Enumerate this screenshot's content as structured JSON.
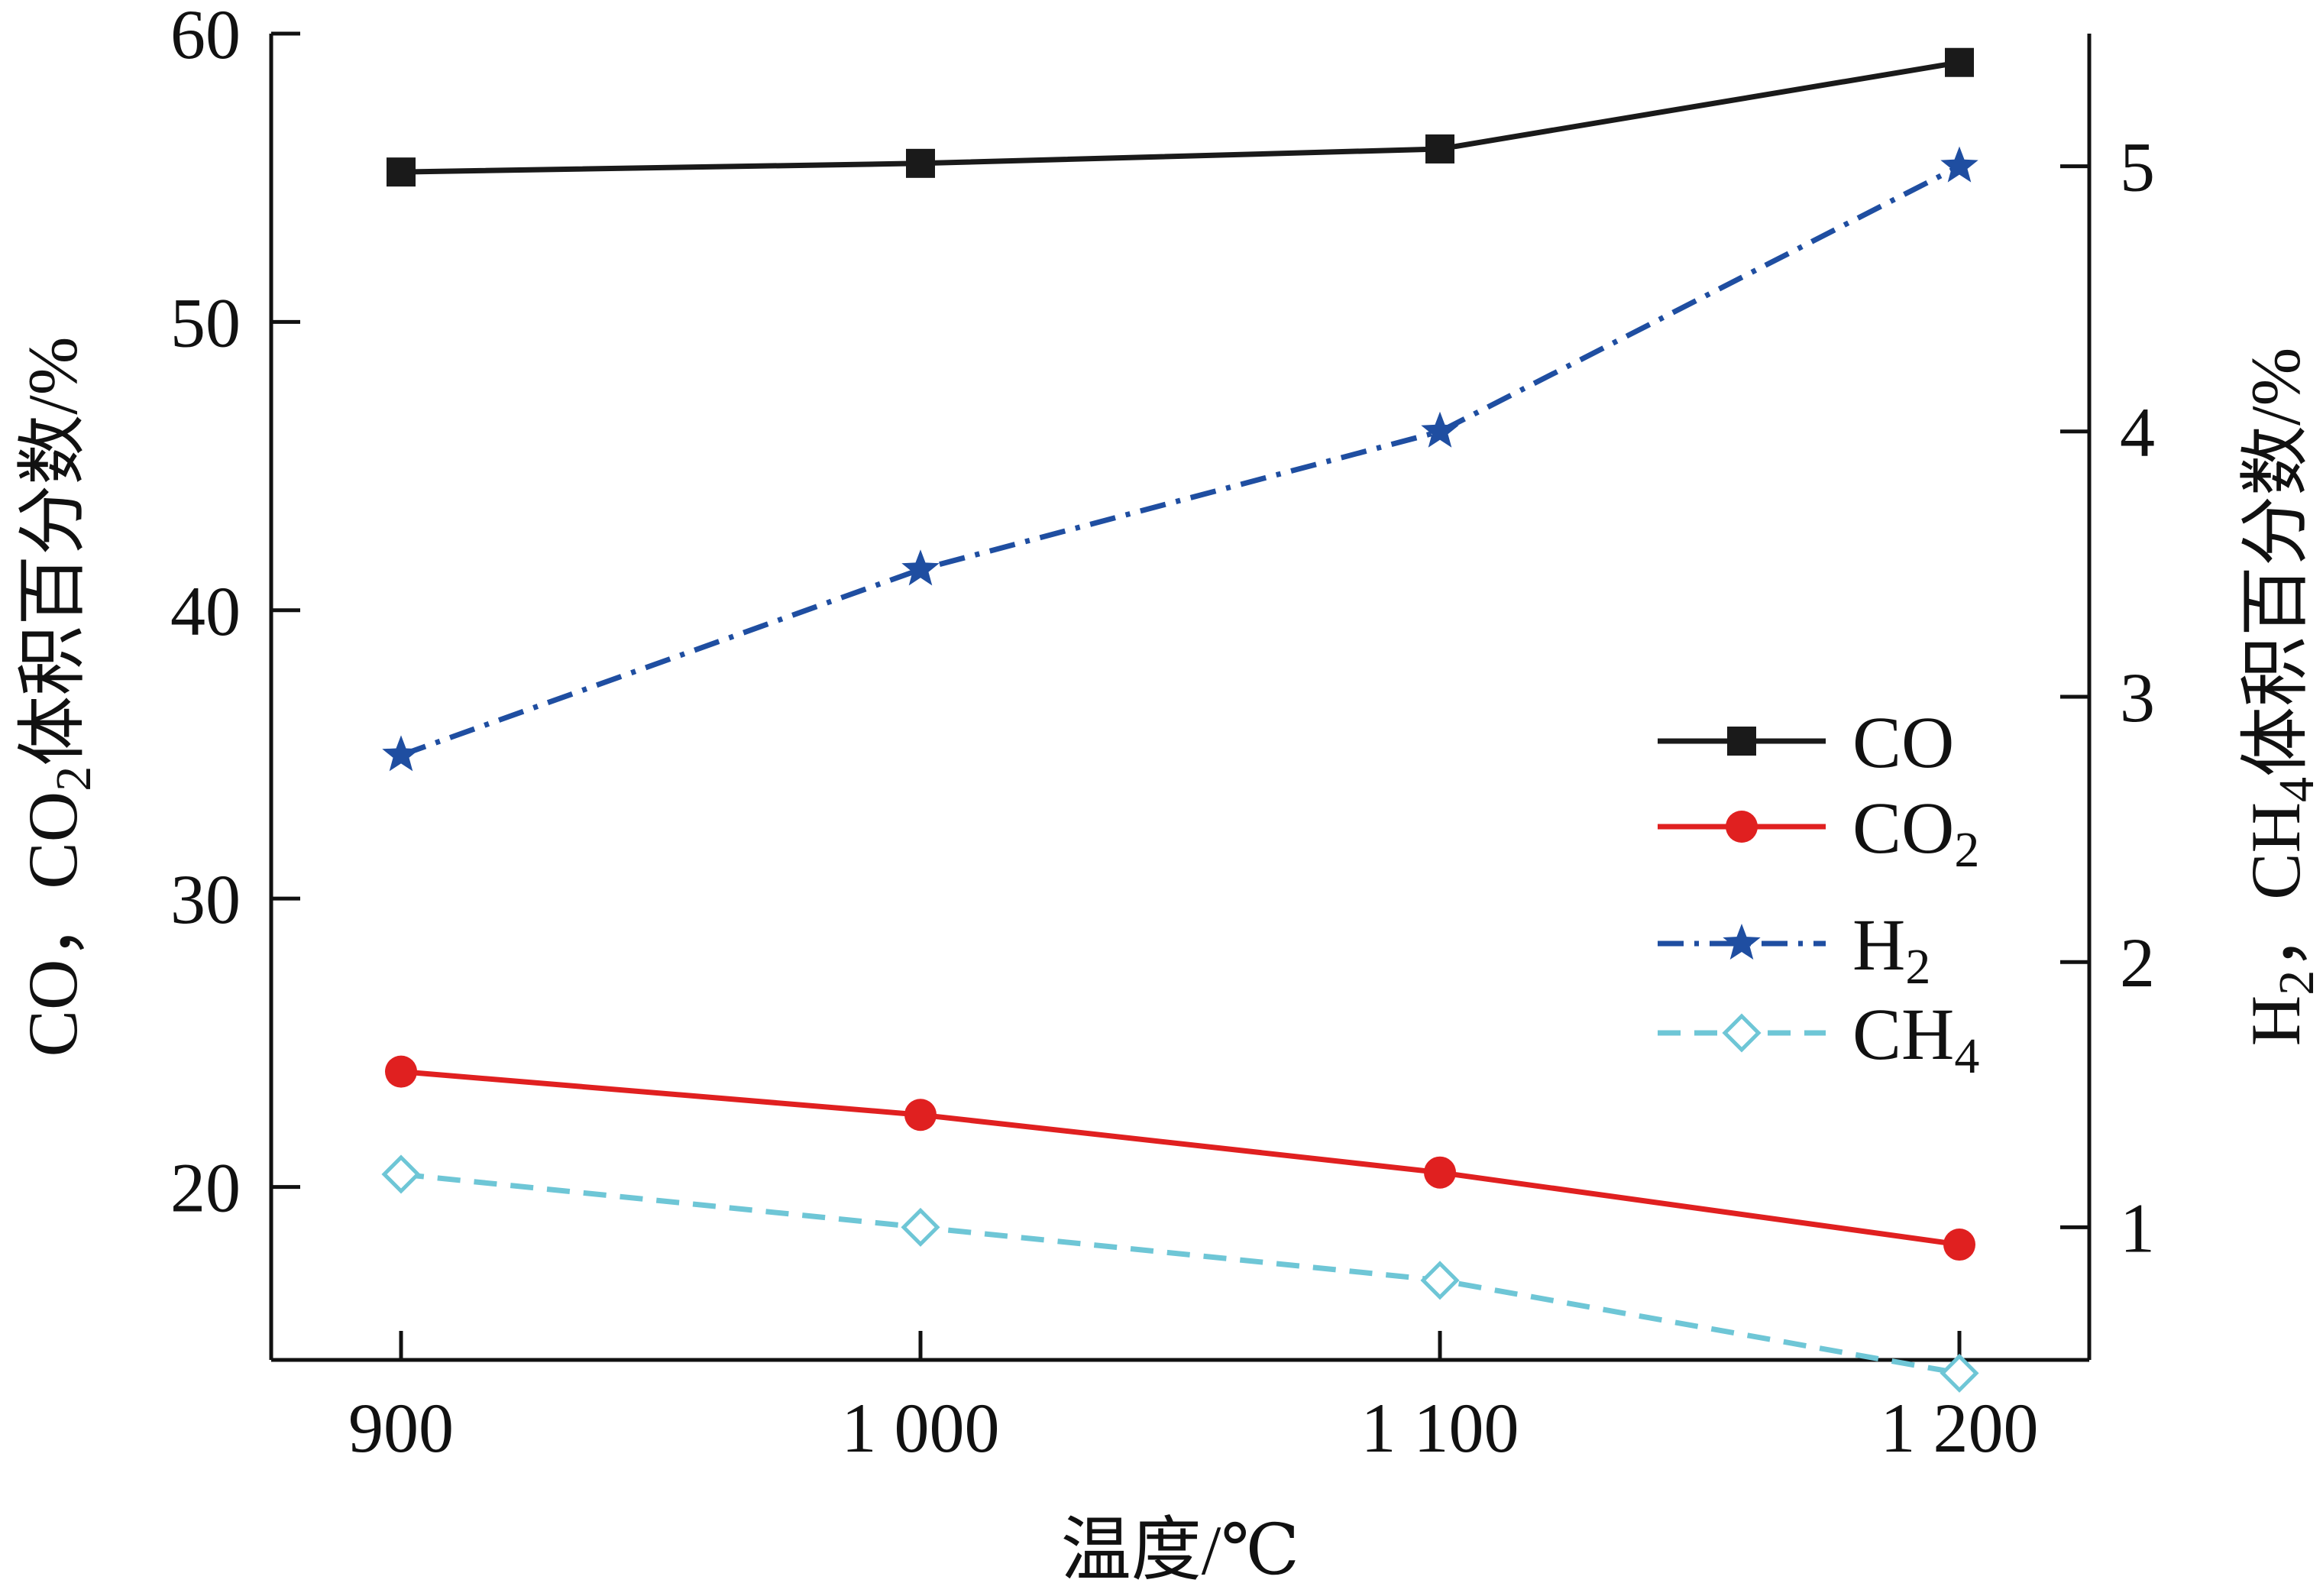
{
  "chart_data": {
    "type": "line",
    "x": [
      900,
      1000,
      1100,
      1200
    ],
    "xtick_labels": [
      "900",
      "1 000",
      "1 100",
      "1 200"
    ],
    "xlabel": "温度/℃",
    "ylabel_left": "CO，CO2体积百分数/%",
    "ylabel_right": "H2，CH4体积百分数/%",
    "ylim_left": [
      14,
      60
    ],
    "ylim_right": [
      0.5,
      5.5
    ],
    "yticks_left": [
      20,
      30,
      40,
      50,
      60
    ],
    "yticks_right": [
      1,
      2,
      3,
      4,
      5
    ],
    "grid": false,
    "legend_position": "center-right",
    "series": [
      {
        "name": "CO",
        "axis": "left",
        "values": [
          55.2,
          55.5,
          56.0,
          59.0
        ],
        "color": "#1a1a1a",
        "dash": "solid",
        "marker": "square"
      },
      {
        "name": "CO2",
        "axis": "left",
        "values": [
          24.0,
          22.5,
          20.5,
          18.0
        ],
        "color": "#e02020",
        "dash": "solid",
        "marker": "circle"
      },
      {
        "name": "H2",
        "axis": "right",
        "values": [
          2.78,
          3.48,
          4.0,
          5.0
        ],
        "color": "#1f4ea1",
        "dash": "dashdot",
        "marker": "star"
      },
      {
        "name": "CH4",
        "axis": "right",
        "values": [
          1.2,
          1.0,
          0.8,
          0.45
        ],
        "color": "#6ec6d6",
        "dash": "dashed",
        "marker": "diamond"
      }
    ]
  }
}
